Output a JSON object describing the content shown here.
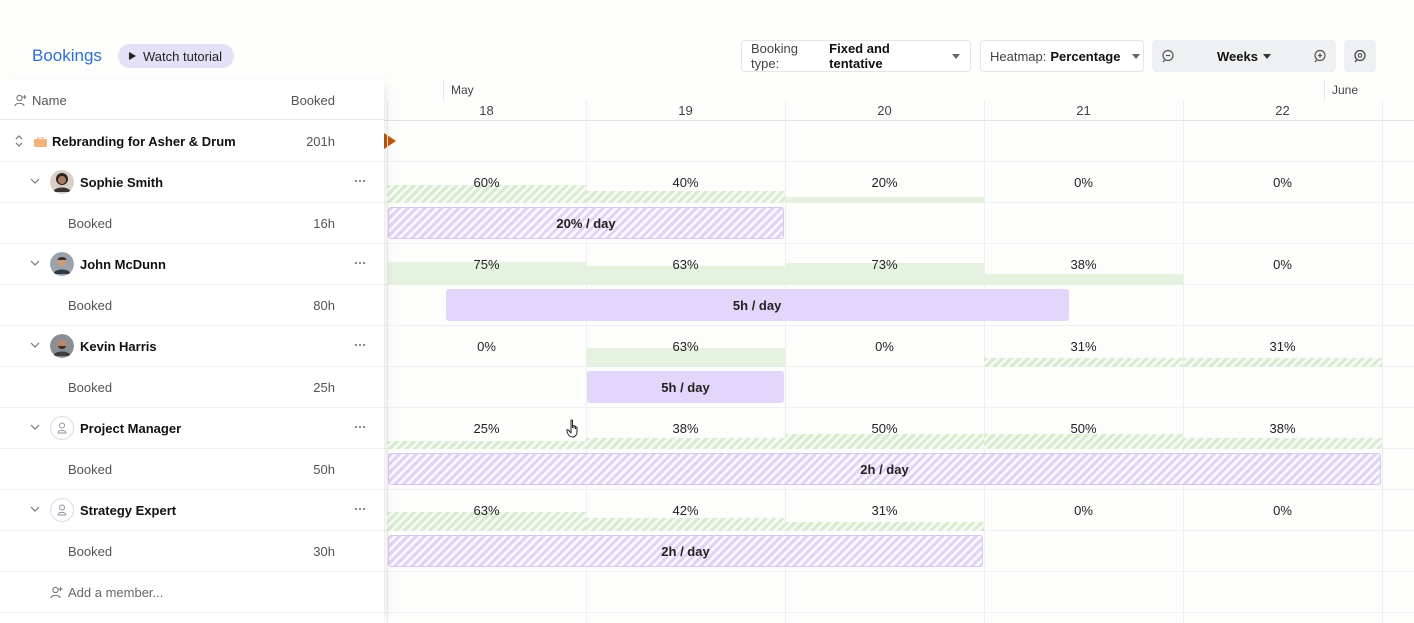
{
  "header": {
    "title": "Bookings",
    "tutorial_label": "Watch tutorial",
    "booking_type": {
      "label": "Booking type:",
      "value": "Fixed and tentative"
    },
    "heatmap": {
      "label": "Heatmap:",
      "value": "Percentage"
    },
    "zoom": {
      "value": "Weeks"
    }
  },
  "columns": {
    "name": "Name",
    "booked": "Booked"
  },
  "timeline": {
    "months": [
      "May",
      "June"
    ],
    "days": [
      "18",
      "19",
      "20",
      "21",
      "22"
    ]
  },
  "project": {
    "name": "Rebranding for Asher & Drum",
    "hours": "201h"
  },
  "members": [
    {
      "name": "Sophie Smith",
      "avatar": "photo",
      "booked_label": "Booked",
      "booked_hours": "16h",
      "heat": [
        {
          "pct": "60%",
          "level": 0.6,
          "tentative": true
        },
        {
          "pct": "40%",
          "level": 0.4,
          "tentative": true
        },
        {
          "pct": "20%",
          "level": 0.2,
          "tentative": false
        },
        {
          "pct": "0%",
          "level": 0,
          "tentative": false
        },
        {
          "pct": "0%",
          "level": 0,
          "tentative": false
        }
      ],
      "booking": {
        "label": "20% / day",
        "tentative": true,
        "start_day": 0,
        "end_day": 2
      }
    },
    {
      "name": "John McDunn",
      "avatar": "photo",
      "booked_label": "Booked",
      "booked_hours": "80h",
      "heat": [
        {
          "pct": "75%",
          "level": 0.75,
          "tentative": false
        },
        {
          "pct": "63%",
          "level": 0.63,
          "tentative": false
        },
        {
          "pct": "73%",
          "level": 0.73,
          "tentative": false
        },
        {
          "pct": "38%",
          "level": 0.38,
          "tentative": false
        },
        {
          "pct": "0%",
          "level": 0,
          "tentative": false
        }
      ],
      "booking": {
        "label": "5h / day",
        "tentative": false,
        "start_day": 0.29,
        "end_day": 3.43
      }
    },
    {
      "name": "Kevin Harris",
      "avatar": "photo",
      "booked_label": "Booked",
      "booked_hours": "25h",
      "heat": [
        {
          "pct": "0%",
          "level": 0,
          "tentative": false
        },
        {
          "pct": "63%",
          "level": 0.63,
          "tentative": false
        },
        {
          "pct": "0%",
          "level": 0,
          "tentative": false
        },
        {
          "pct": "31%",
          "level": 0.31,
          "tentative": true
        },
        {
          "pct": "31%",
          "level": 0.31,
          "tentative": true
        }
      ],
      "booking": {
        "label": "5h / day",
        "tentative": false,
        "start_day": 1,
        "end_day": 2
      }
    },
    {
      "name": "Project Manager",
      "avatar": "placeholder",
      "booked_label": "Booked",
      "booked_hours": "50h",
      "heat": [
        {
          "pct": "25%",
          "level": 0.25,
          "tentative": true
        },
        {
          "pct": "38%",
          "level": 0.38,
          "tentative": true
        },
        {
          "pct": "50%",
          "level": 0.5,
          "tentative": true
        },
        {
          "pct": "50%",
          "level": 0.5,
          "tentative": true
        },
        {
          "pct": "38%",
          "level": 0.38,
          "tentative": true
        }
      ],
      "booking": {
        "label": "2h / day",
        "tentative": true,
        "start_day": 0,
        "end_day": 5
      }
    },
    {
      "name": "Strategy Expert",
      "avatar": "placeholder",
      "booked_label": "Booked",
      "booked_hours": "30h",
      "heat": [
        {
          "pct": "63%",
          "level": 0.63,
          "tentative": true
        },
        {
          "pct": "42%",
          "level": 0.42,
          "tentative": true
        },
        {
          "pct": "31%",
          "level": 0.31,
          "tentative": true
        },
        {
          "pct": "0%",
          "level": 0,
          "tentative": false
        },
        {
          "pct": "0%",
          "level": 0,
          "tentative": false
        }
      ],
      "booking": {
        "label": "2h / day",
        "tentative": true,
        "start_day": 0,
        "end_day": 3
      }
    }
  ],
  "add_member": "Add a member...",
  "colors": {
    "accent": "#2f6fd0",
    "heat_fill": "#e6f2e0",
    "booking_fill": "#e3d6fb",
    "project_marker": "#c35409"
  }
}
